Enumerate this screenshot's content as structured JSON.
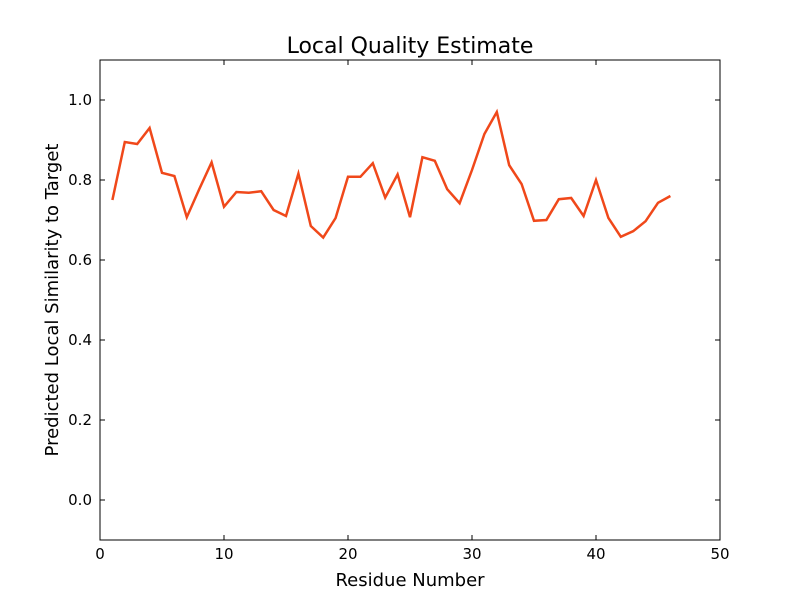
{
  "chart_data": {
    "type": "line",
    "title": "Local Quality Estimate",
    "xlabel": "Residue Number",
    "ylabel": "Predicted Local Similarity to Target",
    "xlim": [
      0,
      50
    ],
    "ylim": [
      -0.1,
      1.1
    ],
    "x_ticks": [
      0,
      10,
      20,
      30,
      40,
      50
    ],
    "x_tick_labels": [
      "0",
      "10",
      "20",
      "30",
      "40",
      "50"
    ],
    "y_ticks": [
      0.0,
      0.2,
      0.4,
      0.6,
      0.8,
      1.0
    ],
    "y_tick_labels": [
      "0.0",
      "0.2",
      "0.4",
      "0.6",
      "0.8",
      "1.0"
    ],
    "grid": false,
    "legend": "none",
    "line_color": "#f0481a",
    "series": [
      {
        "x": [
          1,
          2,
          3,
          4,
          5,
          6,
          7,
          8,
          9,
          10,
          11,
          12,
          13,
          14,
          15,
          16,
          17,
          18,
          19,
          20,
          21,
          22,
          23,
          24,
          25,
          26,
          27,
          28,
          29,
          30,
          31,
          32,
          33,
          34,
          35,
          36,
          37,
          38,
          39,
          40,
          41,
          42,
          43,
          44,
          45,
          46
        ],
        "y": [
          0.75,
          0.895,
          0.89,
          0.93,
          0.818,
          0.81,
          0.707,
          0.777,
          0.844,
          0.733,
          0.77,
          0.768,
          0.772,
          0.725,
          0.71,
          0.816,
          0.685,
          0.656,
          0.705,
          0.808,
          0.808,
          0.842,
          0.756,
          0.814,
          0.707,
          0.857,
          0.848,
          0.777,
          0.742,
          0.825,
          0.915,
          0.97,
          0.837,
          0.79,
          0.698,
          0.7,
          0.752,
          0.755,
          0.71,
          0.8,
          0.705,
          0.658,
          0.672,
          0.697,
          0.743,
          0.76
        ]
      }
    ]
  }
}
